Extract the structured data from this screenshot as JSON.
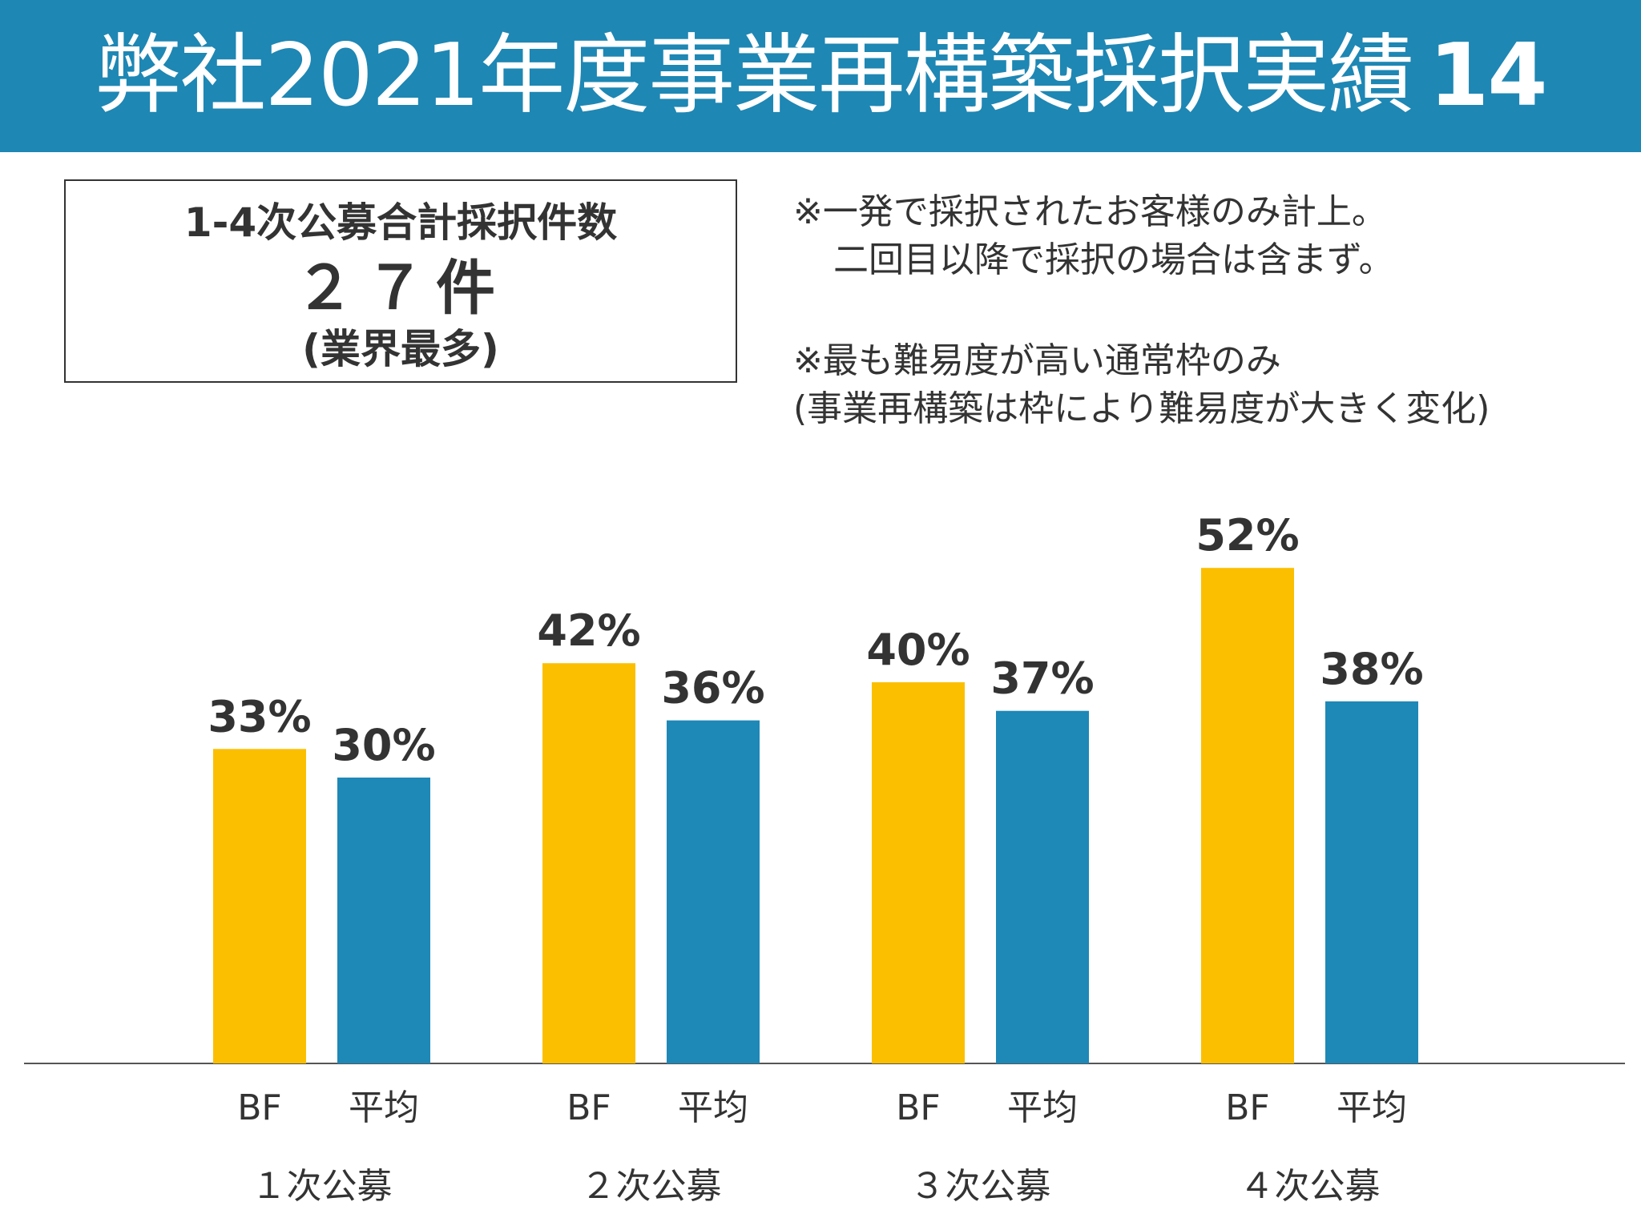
{
  "header": {
    "title": "弊社2021年度事業再構築採択実績",
    "title_number": "14"
  },
  "summary": {
    "line1": "1-4次公募合計採択件数",
    "line2": "２７件",
    "line3": "(業界最多)"
  },
  "notes": [
    "※一発で採択されたお客様のみ計上。",
    "二回目以降で採択の場合は含まず。",
    "※最も難易度が高い通常枠のみ",
    "(事業再構築は枠により難易度が大きく変化)"
  ],
  "colors": {
    "header": "#1e87b4",
    "bf": "#fbbf00",
    "avg": "#1e88b7",
    "text": "#333333"
  },
  "chart_data": {
    "type": "bar",
    "categories": [
      "１次公募",
      "２次公募",
      "３次公募",
      "４次公募"
    ],
    "series": [
      {
        "name": "BF",
        "values": [
          33,
          42,
          40,
          52
        ]
      },
      {
        "name": "平均",
        "values": [
          30,
          36,
          37,
          38
        ]
      }
    ],
    "value_labels": {
      "BF": [
        "33%",
        "42%",
        "40%",
        "52%"
      ],
      "平均": [
        "30%",
        "36%",
        "37%",
        "38%"
      ]
    },
    "ylim": [
      0,
      60
    ],
    "grid": false,
    "legend": "none"
  }
}
